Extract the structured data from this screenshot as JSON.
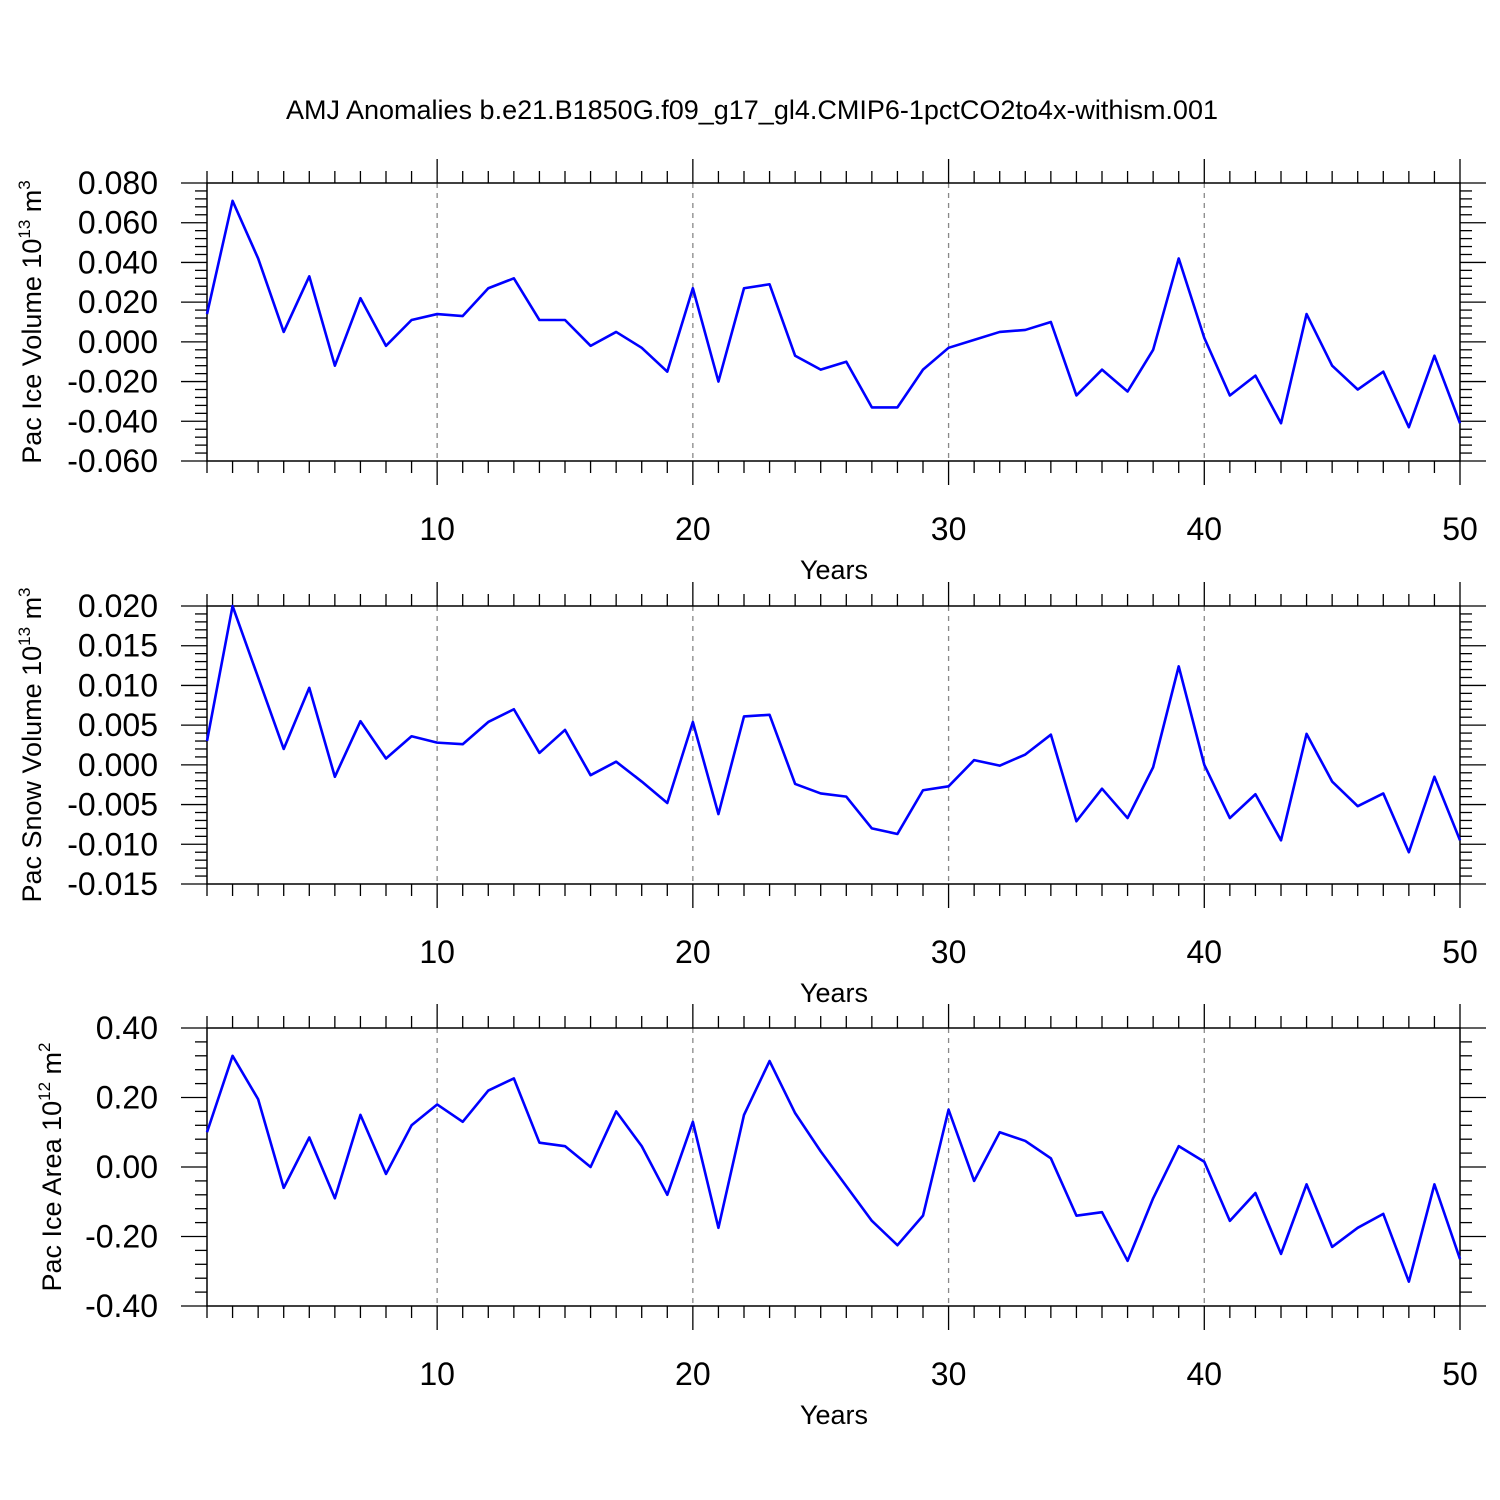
{
  "title": "AMJ Anomalies b.e21.B1850G.f09_g17_gl4.CMIP6-1pctCO2to4x-withism.001",
  "chart_data": [
    {
      "type": "line",
      "ylabel": "Pac Ice Volume 10",
      "ylabel_exp": "13",
      "ylabel_unit": " m",
      "ylabel_unit_exp": "3",
      "xlabel": "Years",
      "xlim": [
        1,
        50
      ],
      "ylim": [
        -0.06,
        0.08
      ],
      "yticks": [
        -0.06,
        -0.04,
        -0.02,
        0.0,
        0.02,
        0.04,
        0.06,
        0.08
      ],
      "ytick_labels": [
        "-0.060",
        "-0.040",
        "-0.020",
        "0.000",
        "0.020",
        "0.040",
        "0.060",
        "0.080"
      ],
      "xticks": [
        10,
        20,
        30,
        40,
        50
      ],
      "xtick_labels": [
        "10",
        "20",
        "30",
        "40",
        "50"
      ],
      "line_color": "#0000ff",
      "series": [
        {
          "name": "Pac Ice Volume",
          "x_start": 1,
          "values": [
            0.014,
            0.071,
            0.042,
            0.005,
            0.033,
            -0.012,
            0.022,
            -0.002,
            0.011,
            0.014,
            0.013,
            0.027,
            0.032,
            0.011,
            0.011,
            -0.002,
            0.005,
            -0.003,
            -0.015,
            0.027,
            -0.02,
            0.027,
            0.029,
            -0.007,
            -0.014,
            -0.01,
            -0.033,
            -0.033,
            -0.014,
            -0.003,
            0.001,
            0.005,
            0.006,
            0.01,
            -0.027,
            -0.014,
            -0.025,
            -0.004,
            0.042,
            0.002,
            -0.027,
            -0.017,
            -0.041,
            0.014,
            -0.012,
            -0.024,
            -0.015,
            -0.043,
            -0.007,
            -0.041
          ]
        }
      ]
    },
    {
      "type": "line",
      "ylabel": "Pac Snow Volume 10",
      "ylabel_exp": "13",
      "ylabel_unit": " m",
      "ylabel_unit_exp": "3",
      "xlabel": "Years",
      "xlim": [
        1,
        50
      ],
      "ylim": [
        -0.015,
        0.02
      ],
      "yticks": [
        -0.015,
        -0.01,
        -0.005,
        0.0,
        0.005,
        0.01,
        0.015,
        0.02
      ],
      "ytick_labels": [
        "-0.015",
        "-0.010",
        "-0.005",
        "0.000",
        "0.005",
        "0.010",
        "0.015",
        "0.020"
      ],
      "xticks": [
        10,
        20,
        30,
        40,
        50
      ],
      "xtick_labels": [
        "10",
        "20",
        "30",
        "40",
        "50"
      ],
      "line_color": "#0000ff",
      "series": [
        {
          "name": "Pac Snow Volume",
          "x_start": 1,
          "values": [
            0.003,
            0.02,
            0.011,
            0.002,
            0.0097,
            -0.0015,
            0.0055,
            0.0008,
            0.0036,
            0.0028,
            0.0026,
            0.0054,
            0.007,
            0.0015,
            0.0044,
            -0.0013,
            0.0004,
            -0.0021,
            -0.0048,
            0.0054,
            -0.0062,
            0.0061,
            0.0063,
            -0.0024,
            -0.0036,
            -0.004,
            -0.008,
            -0.0087,
            -0.0032,
            -0.0027,
            0.0006,
            -0.0001,
            0.0013,
            0.0038,
            -0.0071,
            -0.003,
            -0.0067,
            -0.0003,
            0.0124,
            0.0,
            -0.0067,
            -0.0037,
            -0.0095,
            0.0039,
            -0.0021,
            -0.0052,
            -0.0036,
            -0.011,
            -0.0015,
            -0.0095
          ]
        }
      ]
    },
    {
      "type": "line",
      "ylabel": "Pac Ice Area 10",
      "ylabel_exp": "12",
      "ylabel_unit": " m",
      "ylabel_unit_exp": "2",
      "xlabel": "Years",
      "xlim": [
        1,
        50
      ],
      "ylim": [
        -0.4,
        0.4
      ],
      "yticks": [
        -0.4,
        -0.2,
        0.0,
        0.2,
        0.4
      ],
      "ytick_labels": [
        "-0.40",
        "-0.20",
        "0.00",
        "0.20",
        "0.40"
      ],
      "xticks": [
        10,
        20,
        30,
        40,
        50
      ],
      "xtick_labels": [
        "10",
        "20",
        "30",
        "40",
        "50"
      ],
      "line_color": "#0000ff",
      "series": [
        {
          "name": "Pac Ice Area",
          "x_start": 1,
          "values": [
            0.1,
            0.32,
            0.195,
            -0.06,
            0.085,
            -0.09,
            0.15,
            -0.02,
            0.12,
            0.18,
            0.13,
            0.22,
            0.255,
            0.07,
            0.06,
            0.0,
            0.16,
            0.06,
            -0.08,
            0.13,
            -0.175,
            0.15,
            0.305,
            0.155,
            0.045,
            -0.055,
            -0.155,
            -0.225,
            -0.14,
            0.165,
            -0.04,
            0.1,
            0.075,
            0.025,
            -0.14,
            -0.13,
            -0.27,
            -0.09,
            0.06,
            0.015,
            -0.155,
            -0.075,
            -0.25,
            -0.05,
            -0.23,
            -0.175,
            -0.135,
            -0.33,
            -0.05,
            -0.265
          ]
        }
      ]
    }
  ]
}
